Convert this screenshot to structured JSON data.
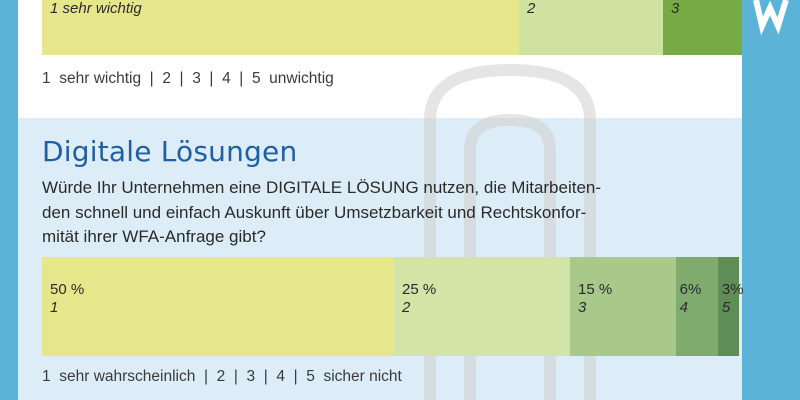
{
  "chart_data": [
    {
      "type": "bar",
      "orientation": "horizontal-stacked",
      "categories": [
        "1",
        "2",
        "3"
      ],
      "category_labels_shown": [
        "1 sehr wichtig",
        "2",
        "3"
      ],
      "colors": [
        "#e6e68a",
        "#cfe2a1",
        "#76aa45"
      ],
      "scale_legend": "1  sehr wichtig  |  2  |  3  |  4  |  5  unwichtig"
    },
    {
      "type": "bar",
      "orientation": "horizontal-stacked",
      "title": "Digitale Lösungen",
      "question_lines": [
        "Würde Ihr Unternehmen eine DIGITALE LÖSUNG nutzen, die Mitarbeiten-",
        "den schnell und einfach Auskunft über Umsetzbarkeit und Rechtskonfor-",
        "mität ihrer WFA-Anfrage gibt?"
      ],
      "categories": [
        "1",
        "2",
        "3",
        "4",
        "5"
      ],
      "values": [
        50,
        25,
        15,
        6,
        3
      ],
      "value_labels": [
        "50 %",
        "25 %",
        "15 %",
        "6%",
        "3%"
      ],
      "colors": [
        "#e6e68a",
        "#d2e4a6",
        "#a8c98a",
        "#7fab6f",
        "#5e8e56"
      ],
      "scale_legend": "1  sehr wahrscheinlich  |  2  |  3  |  4  |  5  sicher nicht"
    }
  ],
  "frame_colors": {
    "side": "#5bb4d8",
    "section_bg": "#dcedf7",
    "title": "#1f5fa6"
  }
}
